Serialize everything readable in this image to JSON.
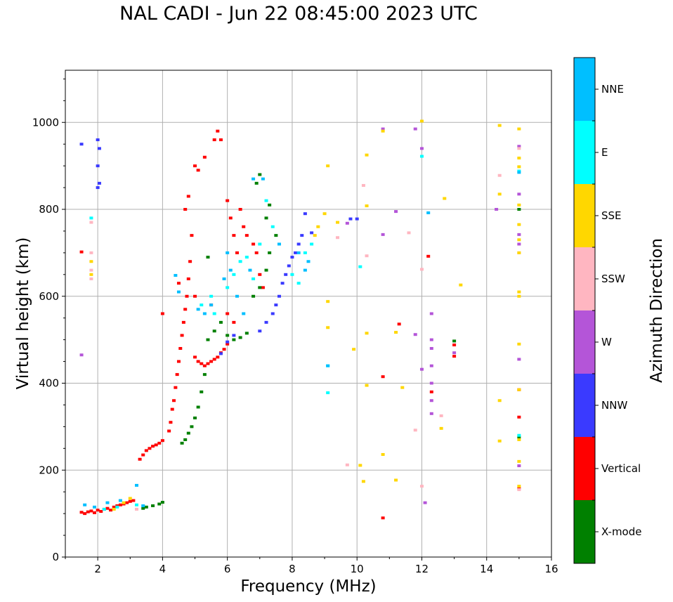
{
  "chart_data": {
    "type": "scatter",
    "title": "NAL CADI - Jun 22 08:45:00 2023 UTC",
    "xlabel": "Frequency (MHz)",
    "ylabel": "Virtual height (km)",
    "xlim": [
      1,
      16
    ],
    "ylim": [
      0,
      1120
    ],
    "xticks": [
      2,
      4,
      6,
      8,
      10,
      12,
      14,
      16
    ],
    "yticks": [
      0,
      200,
      400,
      600,
      800,
      1000
    ],
    "grid": true,
    "colorbar": {
      "title": "Azimuth Direction",
      "entries": [
        {
          "label": "X-mode",
          "color": "#008000"
        },
        {
          "label": "Vertical",
          "color": "#ff0000"
        },
        {
          "label": "NNW",
          "color": "#3a3aff"
        },
        {
          "label": "W",
          "color": "#b455d8"
        },
        {
          "label": "SSW",
          "color": "#ffb6c1"
        },
        {
          "label": "SSE",
          "color": "#ffd700"
        },
        {
          "label": "E",
          "color": "#00ffff"
        },
        {
          "label": "NNE",
          "color": "#00bfff"
        }
      ]
    },
    "series": [
      {
        "name": "Vertical",
        "points": [
          [
            1.5,
            103
          ],
          [
            1.6,
            100
          ],
          [
            1.7,
            104
          ],
          [
            1.8,
            106
          ],
          [
            1.9,
            102
          ],
          [
            2.0,
            108
          ],
          [
            2.1,
            105
          ],
          [
            2.2,
            110
          ],
          [
            2.3,
            112
          ],
          [
            2.4,
            108
          ],
          [
            2.5,
            115
          ],
          [
            2.6,
            118
          ],
          [
            2.7,
            120
          ],
          [
            2.8,
            122
          ],
          [
            2.9,
            125
          ],
          [
            3.0,
            128
          ],
          [
            3.1,
            130
          ],
          [
            1.5,
            702
          ],
          [
            3.3,
            225
          ],
          [
            3.4,
            235
          ],
          [
            3.5,
            245
          ],
          [
            3.6,
            250
          ],
          [
            3.7,
            255
          ],
          [
            3.8,
            258
          ],
          [
            3.9,
            262
          ],
          [
            4.0,
            268
          ],
          [
            4.2,
            290
          ],
          [
            4.25,
            310
          ],
          [
            4.3,
            340
          ],
          [
            4.35,
            360
          ],
          [
            4.4,
            390
          ],
          [
            4.45,
            420
          ],
          [
            4.5,
            450
          ],
          [
            4.55,
            480
          ],
          [
            4.6,
            510
          ],
          [
            4.65,
            540
          ],
          [
            4.7,
            570
          ],
          [
            4.75,
            600
          ],
          [
            4.8,
            640
          ],
          [
            4.85,
            680
          ],
          [
            4.9,
            740
          ],
          [
            4.7,
            800
          ],
          [
            4.8,
            830
          ],
          [
            5.0,
            460
          ],
          [
            5.1,
            450
          ],
          [
            5.2,
            445
          ],
          [
            5.3,
            440
          ],
          [
            5.4,
            445
          ],
          [
            5.5,
            450
          ],
          [
            5.6,
            455
          ],
          [
            5.7,
            460
          ],
          [
            5.8,
            470
          ],
          [
            5.9,
            478
          ],
          [
            6.0,
            490
          ],
          [
            5.0,
            900
          ],
          [
            5.1,
            890
          ],
          [
            5.3,
            920
          ],
          [
            5.6,
            960
          ],
          [
            5.7,
            980
          ],
          [
            5.8,
            960
          ],
          [
            6.0,
            820
          ],
          [
            6.1,
            780
          ],
          [
            6.2,
            740
          ],
          [
            6.3,
            700
          ],
          [
            6.4,
            800
          ],
          [
            6.5,
            760
          ],
          [
            6.6,
            740
          ],
          [
            6.8,
            720
          ],
          [
            6.9,
            700
          ],
          [
            7.0,
            650
          ],
          [
            7.1,
            620
          ],
          [
            4.0,
            560
          ],
          [
            4.5,
            630
          ],
          [
            5.0,
            600
          ],
          [
            5.5,
            580
          ],
          [
            6.0,
            560
          ],
          [
            6.2,
            540
          ],
          [
            12.3,
            380
          ],
          [
            12.2,
            692
          ],
          [
            13.0,
            488
          ],
          [
            13.0,
            462
          ],
          [
            15.0,
            385
          ],
          [
            15.0,
            322
          ],
          [
            15.0,
            158
          ],
          [
            10.8,
            90
          ],
          [
            10.8,
            415
          ],
          [
            11.3,
            536
          ]
        ]
      },
      {
        "name": "X-mode",
        "points": [
          [
            3.4,
            112
          ],
          [
            3.5,
            115
          ],
          [
            3.7,
            118
          ],
          [
            3.9,
            122
          ],
          [
            4.0,
            126
          ],
          [
            4.6,
            262
          ],
          [
            4.7,
            270
          ],
          [
            4.8,
            285
          ],
          [
            4.9,
            300
          ],
          [
            5.0,
            320
          ],
          [
            5.1,
            345
          ],
          [
            5.2,
            380
          ],
          [
            5.3,
            420
          ],
          [
            5.4,
            500
          ],
          [
            5.6,
            520
          ],
          [
            5.8,
            540
          ],
          [
            6.0,
            510
          ],
          [
            6.2,
            500
          ],
          [
            6.4,
            505
          ],
          [
            6.6,
            515
          ],
          [
            6.8,
            600
          ],
          [
            7.0,
            620
          ],
          [
            7.2,
            660
          ],
          [
            7.3,
            700
          ],
          [
            7.5,
            740
          ],
          [
            5.4,
            690
          ],
          [
            6.9,
            860
          ],
          [
            7.0,
            880
          ],
          [
            7.2,
            780
          ],
          [
            7.3,
            810
          ],
          [
            13.0,
            497
          ],
          [
            15.0,
            800
          ],
          [
            15.0,
            276
          ]
        ]
      },
      {
        "name": "NNW",
        "points": [
          [
            1.5,
            950
          ],
          [
            2.0,
            960
          ],
          [
            2.05,
            940
          ],
          [
            2.0,
            900
          ],
          [
            2.05,
            860
          ],
          [
            2.0,
            850
          ],
          [
            5.8,
            468
          ],
          [
            6.0,
            495
          ],
          [
            6.2,
            510
          ],
          [
            7.0,
            520
          ],
          [
            7.2,
            540
          ],
          [
            7.4,
            560
          ],
          [
            7.5,
            580
          ],
          [
            7.6,
            600
          ],
          [
            7.7,
            630
          ],
          [
            7.8,
            650
          ],
          [
            7.9,
            670
          ],
          [
            8.0,
            690
          ],
          [
            8.1,
            700
          ],
          [
            8.2,
            720
          ],
          [
            8.3,
            740
          ],
          [
            8.4,
            790
          ],
          [
            8.6,
            746
          ],
          [
            9.8,
            778
          ],
          [
            10.0,
            778
          ]
        ]
      },
      {
        "name": "W",
        "points": [
          [
            1.5,
            465
          ],
          [
            12.3,
            330
          ],
          [
            12.3,
            360
          ],
          [
            12.3,
            400
          ],
          [
            12.3,
            440
          ],
          [
            12.3,
            480
          ],
          [
            12.3,
            500
          ],
          [
            12.3,
            560
          ],
          [
            13.0,
            470
          ],
          [
            15.0,
            455
          ],
          [
            15.0,
            720
          ],
          [
            15.0,
            742
          ],
          [
            15.0,
            835
          ],
          [
            15.0,
            945
          ],
          [
            14.3,
            800
          ],
          [
            11.8,
            985
          ],
          [
            12.0,
            940
          ],
          [
            10.8,
            985
          ],
          [
            11.2,
            795
          ],
          [
            10.8,
            742
          ],
          [
            9.7,
            768
          ],
          [
            11.8,
            512
          ],
          [
            12.0,
            432
          ],
          [
            12.1,
            125
          ],
          [
            15.0,
            210
          ]
        ]
      },
      {
        "name": "SSW",
        "points": [
          [
            1.8,
            640
          ],
          [
            1.8,
            660
          ],
          [
            1.8,
            700
          ],
          [
            1.8,
            770
          ],
          [
            3.2,
            110
          ],
          [
            12.6,
            325
          ],
          [
            14.4,
            878
          ],
          [
            11.8,
            292
          ],
          [
            12.0,
            163
          ],
          [
            9.7,
            212
          ],
          [
            9.4,
            735
          ],
          [
            10.2,
            855
          ],
          [
            10.3,
            693
          ],
          [
            11.6,
            746
          ],
          [
            12.0,
            662
          ],
          [
            15.0,
            940
          ],
          [
            15.0,
            700
          ],
          [
            15.0,
            155
          ]
        ]
      },
      {
        "name": "SSE",
        "points": [
          [
            1.8,
            650
          ],
          [
            1.8,
            680
          ],
          [
            2.5,
            110
          ],
          [
            2.8,
            125
          ],
          [
            3.0,
            135
          ],
          [
            8.7,
            740
          ],
          [
            8.8,
            760
          ],
          [
            9.0,
            790
          ],
          [
            9.1,
            900
          ],
          [
            9.1,
            588
          ],
          [
            9.1,
            528
          ],
          [
            9.4,
            770
          ],
          [
            9.9,
            478
          ],
          [
            10.1,
            211
          ],
          [
            10.2,
            174
          ],
          [
            10.3,
            395
          ],
          [
            10.3,
            515
          ],
          [
            10.3,
            808
          ],
          [
            10.3,
            925
          ],
          [
            10.8,
            236
          ],
          [
            10.8,
            980
          ],
          [
            11.2,
            177
          ],
          [
            11.2,
            517
          ],
          [
            11.4,
            390
          ],
          [
            12.0,
            1003
          ],
          [
            12.6,
            296
          ],
          [
            12.7,
            825
          ],
          [
            13.2,
            626
          ],
          [
            14.4,
            993
          ],
          [
            14.4,
            835
          ],
          [
            14.4,
            360
          ],
          [
            14.4,
            267
          ],
          [
            15.0,
            985
          ],
          [
            15.0,
            918
          ],
          [
            15.0,
            898
          ],
          [
            15.0,
            810
          ],
          [
            15.0,
            765
          ],
          [
            15.0,
            730
          ],
          [
            15.0,
            700
          ],
          [
            15.0,
            610
          ],
          [
            15.0,
            600
          ],
          [
            15.0,
            490
          ],
          [
            15.0,
            385
          ],
          [
            15.0,
            270
          ],
          [
            15.0,
            220
          ],
          [
            15.0,
            163
          ]
        ]
      },
      {
        "name": "E",
        "points": [
          [
            1.8,
            780
          ],
          [
            2.2,
            110
          ],
          [
            2.6,
            115
          ],
          [
            3.2,
            120
          ],
          [
            5.2,
            580
          ],
          [
            5.5,
            600
          ],
          [
            5.6,
            560
          ],
          [
            6.0,
            620
          ],
          [
            6.2,
            650
          ],
          [
            6.4,
            680
          ],
          [
            6.6,
            690
          ],
          [
            6.8,
            640
          ],
          [
            7.0,
            720
          ],
          [
            7.2,
            820
          ],
          [
            7.4,
            760
          ],
          [
            8.0,
            650
          ],
          [
            8.2,
            630
          ],
          [
            8.4,
            700
          ],
          [
            8.6,
            720
          ],
          [
            9.1,
            440
          ],
          [
            9.1,
            378
          ],
          [
            10.1,
            668
          ],
          [
            12.0,
            922
          ],
          [
            15.0,
            888
          ],
          [
            15.0,
            280
          ]
        ]
      },
      {
        "name": "NNE",
        "points": [
          [
            1.6,
            120
          ],
          [
            1.9,
            115
          ],
          [
            2.3,
            125
          ],
          [
            2.7,
            130
          ],
          [
            3.2,
            165
          ],
          [
            3.4,
            118
          ],
          [
            4.4,
            648
          ],
          [
            4.5,
            610
          ],
          [
            5.1,
            570
          ],
          [
            5.3,
            560
          ],
          [
            5.5,
            580
          ],
          [
            5.9,
            640
          ],
          [
            6.0,
            700
          ],
          [
            6.1,
            660
          ],
          [
            6.3,
            600
          ],
          [
            6.5,
            560
          ],
          [
            6.7,
            660
          ],
          [
            6.8,
            870
          ],
          [
            7.1,
            870
          ],
          [
            7.6,
            720
          ],
          [
            8.2,
            700
          ],
          [
            8.4,
            660
          ],
          [
            8.5,
            680
          ],
          [
            9.1,
            440
          ],
          [
            12.2,
            792
          ],
          [
            15.0,
            885
          ]
        ]
      }
    ]
  }
}
